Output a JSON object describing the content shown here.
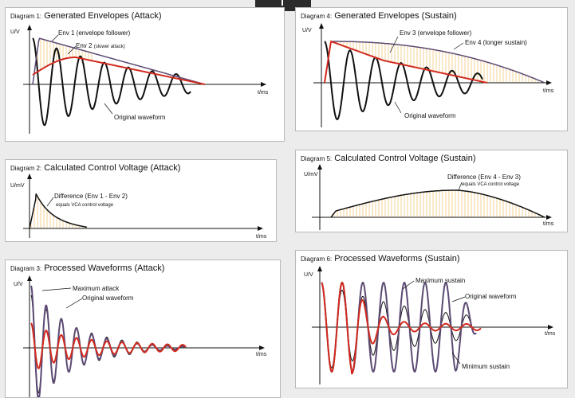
{
  "axes": {
    "uv": "U/V",
    "umv": "U/mV",
    "tms": "t/ms"
  },
  "colors": {
    "wave": "#111111",
    "env1": "#5c4a73",
    "env2": "#d22a1e",
    "fill": "#f3c57a",
    "diff": "#111111"
  },
  "diagrams": [
    {
      "prefix": "Diagram 1:",
      "title": "Generated Envelopes (Attack)",
      "labels": {
        "env1": "Env 1 (envelope follower)",
        "env2": "Env 2",
        "env2_note": "(slower attack)",
        "wave": "Original waveform"
      }
    },
    {
      "prefix": "Diagram 2:",
      "title": "Calculated Control Voltage (Attack)",
      "labels": {
        "diff": "Difference (Env 1 - Env 2)",
        "note": "equals VCA control voltage"
      }
    },
    {
      "prefix": "Diagram 3:",
      "title": "Processed Waveforms (Attack)",
      "labels": {
        "max": "Maximum attack",
        "orig": "Original waveform"
      }
    },
    {
      "prefix": "Diagram 4:",
      "title": "Generated Envelopes (Sustain)",
      "labels": {
        "env3": "Env 3 (envelope follower)",
        "env4": "Env 4 (longer sustain)",
        "wave": "Original waveform"
      }
    },
    {
      "prefix": "Diagram 5:",
      "title": "Calculated Control Voltage (Sustain)",
      "labels": {
        "diff": "Difference (Env 4 - Env 3)",
        "note": "equals VCA control voltage"
      }
    },
    {
      "prefix": "Diagram 6:",
      "title": "Processed Waveforms (Sustain)",
      "labels": {
        "max": "Maximum sustain",
        "orig": "Original waveform",
        "min": "Minimum sustain"
      }
    }
  ]
}
